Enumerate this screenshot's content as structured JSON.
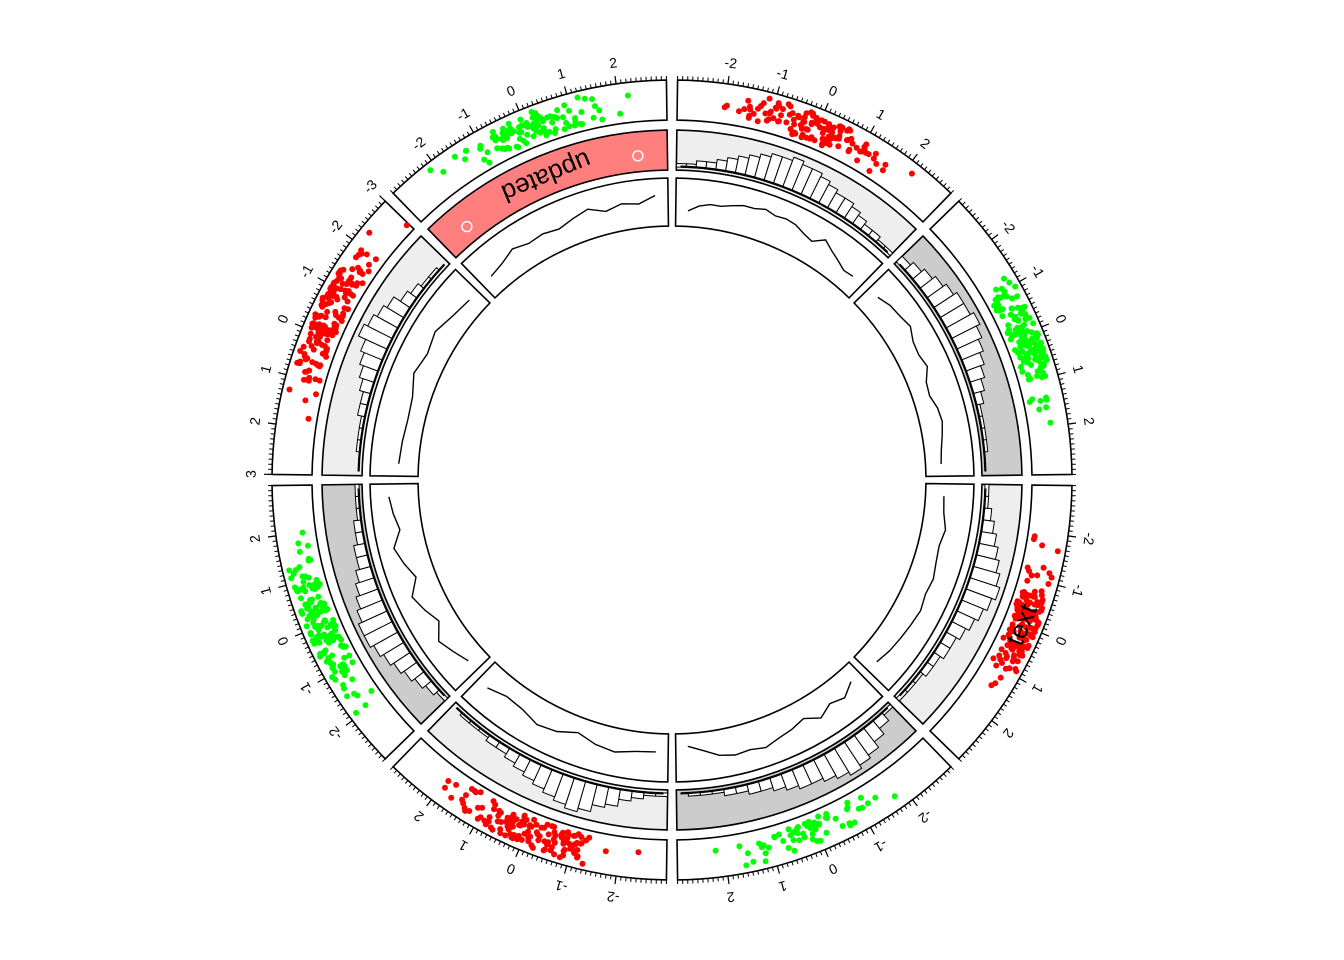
{
  "chart_data": {
    "type": "circular",
    "title": "",
    "colors": {
      "red": "#ff0000",
      "green": "#00ff00",
      "dark_bg": "#cccccc",
      "light_bg": "#eeeeee",
      "highlight": "#ff7f7f",
      "border": "#000000",
      "label": "#ffffff"
    },
    "tracks": [
      {
        "name": "",
        "type": "scatter",
        "ylim": [
          -3,
          3
        ]
      },
      {
        "name": "",
        "type": "histogram"
      },
      {
        "name": "",
        "type": "line"
      }
    ],
    "sectors": [
      {
        "id": "a",
        "color": "red",
        "tick_labels": [
          "-2",
          "-1",
          "0",
          "1",
          "2"
        ],
        "reverse": false,
        "mean": 0.0,
        "sd": 0.8,
        "n": 130,
        "hist_bg": "light",
        "hist_bars": [
          1,
          1,
          2,
          2,
          3,
          4,
          5,
          6,
          7,
          8,
          8,
          9,
          8,
          8,
          7,
          6,
          5,
          5,
          4,
          3,
          2,
          2,
          1,
          1
        ],
        "line": [
          0.2,
          0.4,
          0.5,
          0.5,
          0.6,
          0.7,
          0.7,
          0.8,
          0.7,
          0.75,
          0.7,
          0.55,
          0.45,
          0.75,
          0.55,
          0.4,
          0.25,
          0.3
        ]
      },
      {
        "id": "b",
        "color": "green",
        "tick_labels": [
          "-2",
          "-1",
          "0",
          "1",
          "2"
        ],
        "reverse": false,
        "mean": 0.1,
        "sd": 0.7,
        "n": 130,
        "hist_bg": "dark",
        "hist_bars": [
          2,
          3,
          4,
          5,
          6,
          7,
          7,
          8,
          7,
          6,
          5,
          4,
          3,
          2,
          1,
          1,
          1,
          1,
          0,
          0
        ],
        "line": [
          0.4,
          0.55,
          0.6,
          0.7,
          0.5,
          0.45,
          0.55,
          0.3,
          0.25,
          0.4,
          0.45,
          0.35,
          0.25,
          0.2
        ]
      },
      {
        "id": "c",
        "color": "red",
        "tick_labels": [
          "-2",
          "-1",
          "0",
          "1",
          "2"
        ],
        "reverse": false,
        "mean": 0.0,
        "sd": 0.7,
        "n": 150,
        "hist_bg": "light",
        "hist_bars": [
          1,
          1,
          2,
          3,
          4,
          5,
          6,
          7,
          8,
          7,
          6,
          5,
          4,
          3,
          3,
          2,
          2,
          1,
          1,
          1
        ],
        "line": [
          0.3,
          0.35,
          0.5,
          0.4,
          0.45,
          0.55,
          0.5,
          0.6,
          0.55,
          0.5,
          0.45,
          0.35
        ]
      },
      {
        "id": "d",
        "color": "green",
        "tick_labels": [
          "-2",
          "-1",
          "0",
          "1",
          "2"
        ],
        "reverse": false,
        "mean": 0.0,
        "sd": 0.9,
        "n": 60,
        "hist_bg": "dark",
        "hist_bars": [
          1,
          3,
          5,
          7,
          8,
          9,
          8,
          7,
          6,
          6,
          5,
          4,
          3,
          3,
          2,
          2,
          1,
          1,
          1,
          0
        ],
        "line": [
          0.2,
          0.5,
          0.35,
          0.6,
          0.3,
          0.45,
          0.55,
          0.7,
          0.6,
          0.65,
          0.55,
          0.3,
          0.1
        ]
      },
      {
        "id": "e",
        "color": "red",
        "tick_labels": [
          "-2",
          "-1",
          "0",
          "1",
          "2"
        ],
        "reverse": false,
        "mean": 0.0,
        "sd": 0.8,
        "n": 140,
        "hist_bg": "light",
        "hist_bars": [
          1,
          1,
          2,
          3,
          5,
          6,
          8,
          9,
          8,
          7,
          6,
          5,
          4,
          3,
          2,
          2,
          1,
          1,
          1,
          0
        ],
        "line": [
          0.3,
          0.35,
          0.5,
          0.4,
          0.2,
          0.45,
          0.55,
          0.35,
          0.3,
          0.5
        ]
      },
      {
        "id": "f",
        "color": "green",
        "tick_labels": [
          "-2",
          "-1",
          "0",
          "1",
          "2"
        ],
        "reverse": false,
        "mean": 0.0,
        "sd": 0.8,
        "n": 150,
        "hist_bg": "dark",
        "hist_bars": [
          1,
          2,
          3,
          4,
          5,
          6,
          7,
          8,
          8,
          7,
          6,
          5,
          4,
          3,
          3,
          2,
          2,
          1,
          1,
          1
        ],
        "line": [
          0.3,
          0.5,
          0.7,
          0.3,
          0.55,
          0.75,
          0.35,
          0.6,
          0.8,
          0.45,
          0.6,
          0.7
        ]
      },
      {
        "id": "g",
        "color": "red",
        "tick_labels": [
          "-3",
          "-2",
          "-1",
          "0",
          "1",
          "2",
          "3"
        ],
        "reverse": true,
        "mean": -0.4,
        "sd": 0.8,
        "n": 150,
        "hist_bg": "light",
        "hist_bars": [
          0,
          0,
          1,
          1,
          1,
          2,
          2,
          3,
          4,
          5,
          6,
          8,
          7,
          6,
          5,
          3,
          2,
          1,
          1,
          0
        ],
        "line": [
          0.35,
          0.3,
          0.25,
          0.3,
          0.55,
          0.4,
          0.55,
          0.35,
          0.25
        ]
      },
      {
        "id": "h",
        "color": "green",
        "tick_labels": [
          "-2",
          "-1",
          "0",
          "1",
          "2"
        ],
        "reverse": false,
        "mean": 0.0,
        "sd": 0.9,
        "n": 110,
        "hist_bg": "highlight",
        "hist_bars": [],
        "line": [
          0.3,
          0.4,
          0.6,
          0.45,
          0.5,
          0.4,
          0.55,
          0.7,
          0.45,
          0.6,
          0.5,
          0.75
        ]
      }
    ],
    "annotations": [
      {
        "text": "updated",
        "sector": "h",
        "track": 2,
        "color": "label"
      },
      {
        "text": "text",
        "sector": "c",
        "track": 1,
        "color": "border"
      }
    ]
  }
}
